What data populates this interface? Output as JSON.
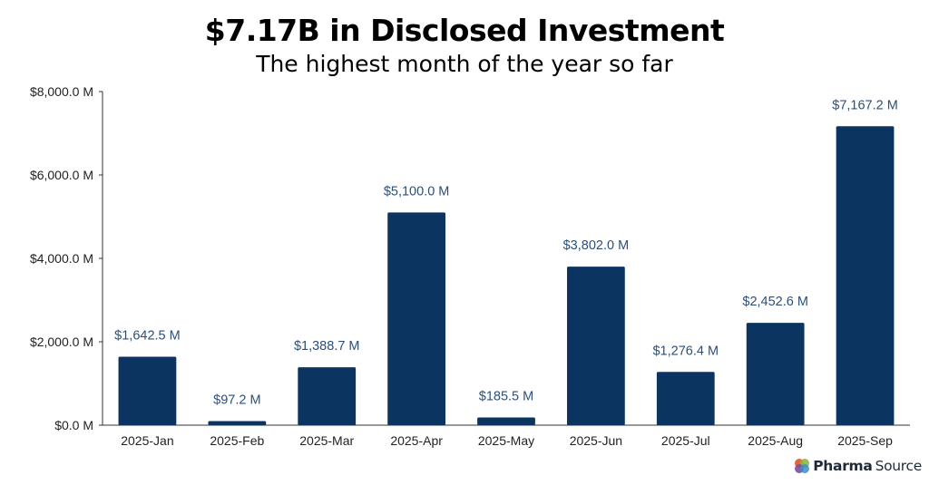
{
  "chart_data": {
    "type": "bar",
    "title": "$7.17B in Disclosed Investment",
    "subtitle": "The highest month of the year so far",
    "categories": [
      "2025-Jan",
      "2025-Feb",
      "2025-Mar",
      "2025-Apr",
      "2025-May",
      "2025-Jun",
      "2025-Jul",
      "2025-Aug",
      "2025-Sep"
    ],
    "values": [
      1642.5,
      97.2,
      1388.7,
      5100.0,
      185.5,
      3802.0,
      1276.4,
      2452.6,
      7167.2
    ],
    "value_labels": [
      "$1,642.5 M",
      "$97.2 M",
      "$1,388.7 M",
      "$5,100.0 M",
      "$185.5 M",
      "$3,802.0 M",
      "$1,276.4 M",
      "$2,452.6 M",
      "$7,167.2 M"
    ],
    "yticks": [
      0,
      2000,
      4000,
      6000,
      8000
    ],
    "ytick_labels": [
      "$0.0 M",
      "$2,000.0 M",
      "$4,000.0 M",
      "$6,000.0 M",
      "$8,000.0 M"
    ],
    "ylim": [
      0,
      8000
    ],
    "xlabel": "",
    "ylabel": "",
    "grid": false,
    "bar_color": "#0b3560",
    "label_color": "#2c4f7a"
  },
  "branding": {
    "logo_part1": "Pharma",
    "logo_part2": "Source"
  }
}
